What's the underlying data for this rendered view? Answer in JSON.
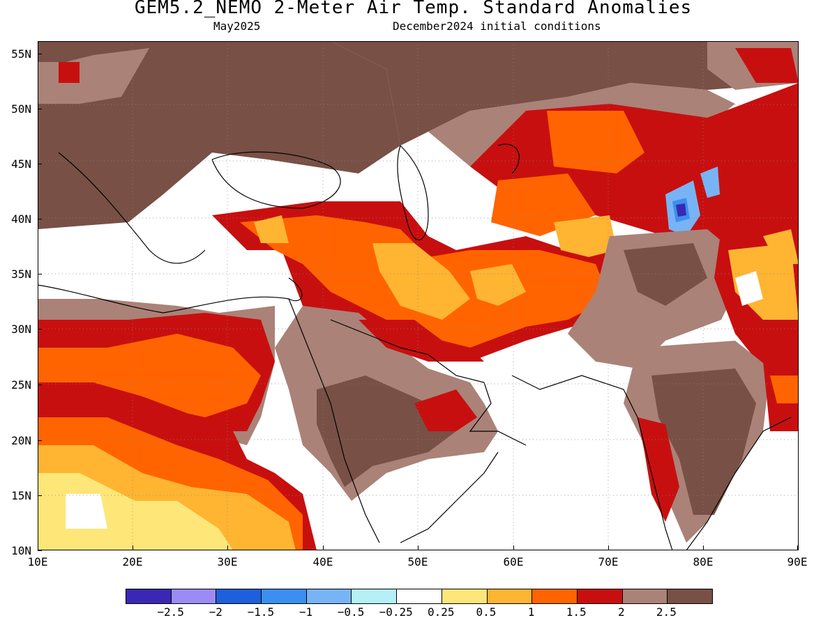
{
  "title": "GEM5.2_NEMO 2-Meter Air Temp. Standard Anomalies",
  "subtitle_left": "May2025",
  "subtitle_right": "December2024 initial conditions",
  "lat_labels": [
    "55N",
    "50N",
    "45N",
    "40N",
    "35N",
    "30N",
    "25N",
    "20N",
    "15N",
    "10N"
  ],
  "lon_labels": [
    "10E",
    "20E",
    "30E",
    "40E",
    "50E",
    "60E",
    "70E",
    "80E",
    "90E"
  ],
  "colorbar": {
    "colors": [
      "#3a28b4",
      "#9b8cf5",
      "#1e5fdc",
      "#3b8ff0",
      "#78b4f5",
      "#b4f0f5",
      "#ffffff",
      "#ffe678",
      "#ffb432",
      "#ff6400",
      "#c80f0f",
      "#aa8278",
      "#785046"
    ],
    "labels": [
      "−2.5",
      "−2",
      "−1.5",
      "−1",
      "−0.5",
      "−0.25",
      "0.25",
      "0.5",
      "1",
      "1.5",
      "2",
      "2.5"
    ]
  },
  "legend_classes": {
    "brown": "#785046",
    "tan": "#aa8278",
    "red": "#c80f0f",
    "orange": "#ff6400",
    "light_orange": "#ffb432",
    "yellow": "#ffe678",
    "blue_dark": "#3a28b4",
    "blue": "#3b8ff0"
  }
}
